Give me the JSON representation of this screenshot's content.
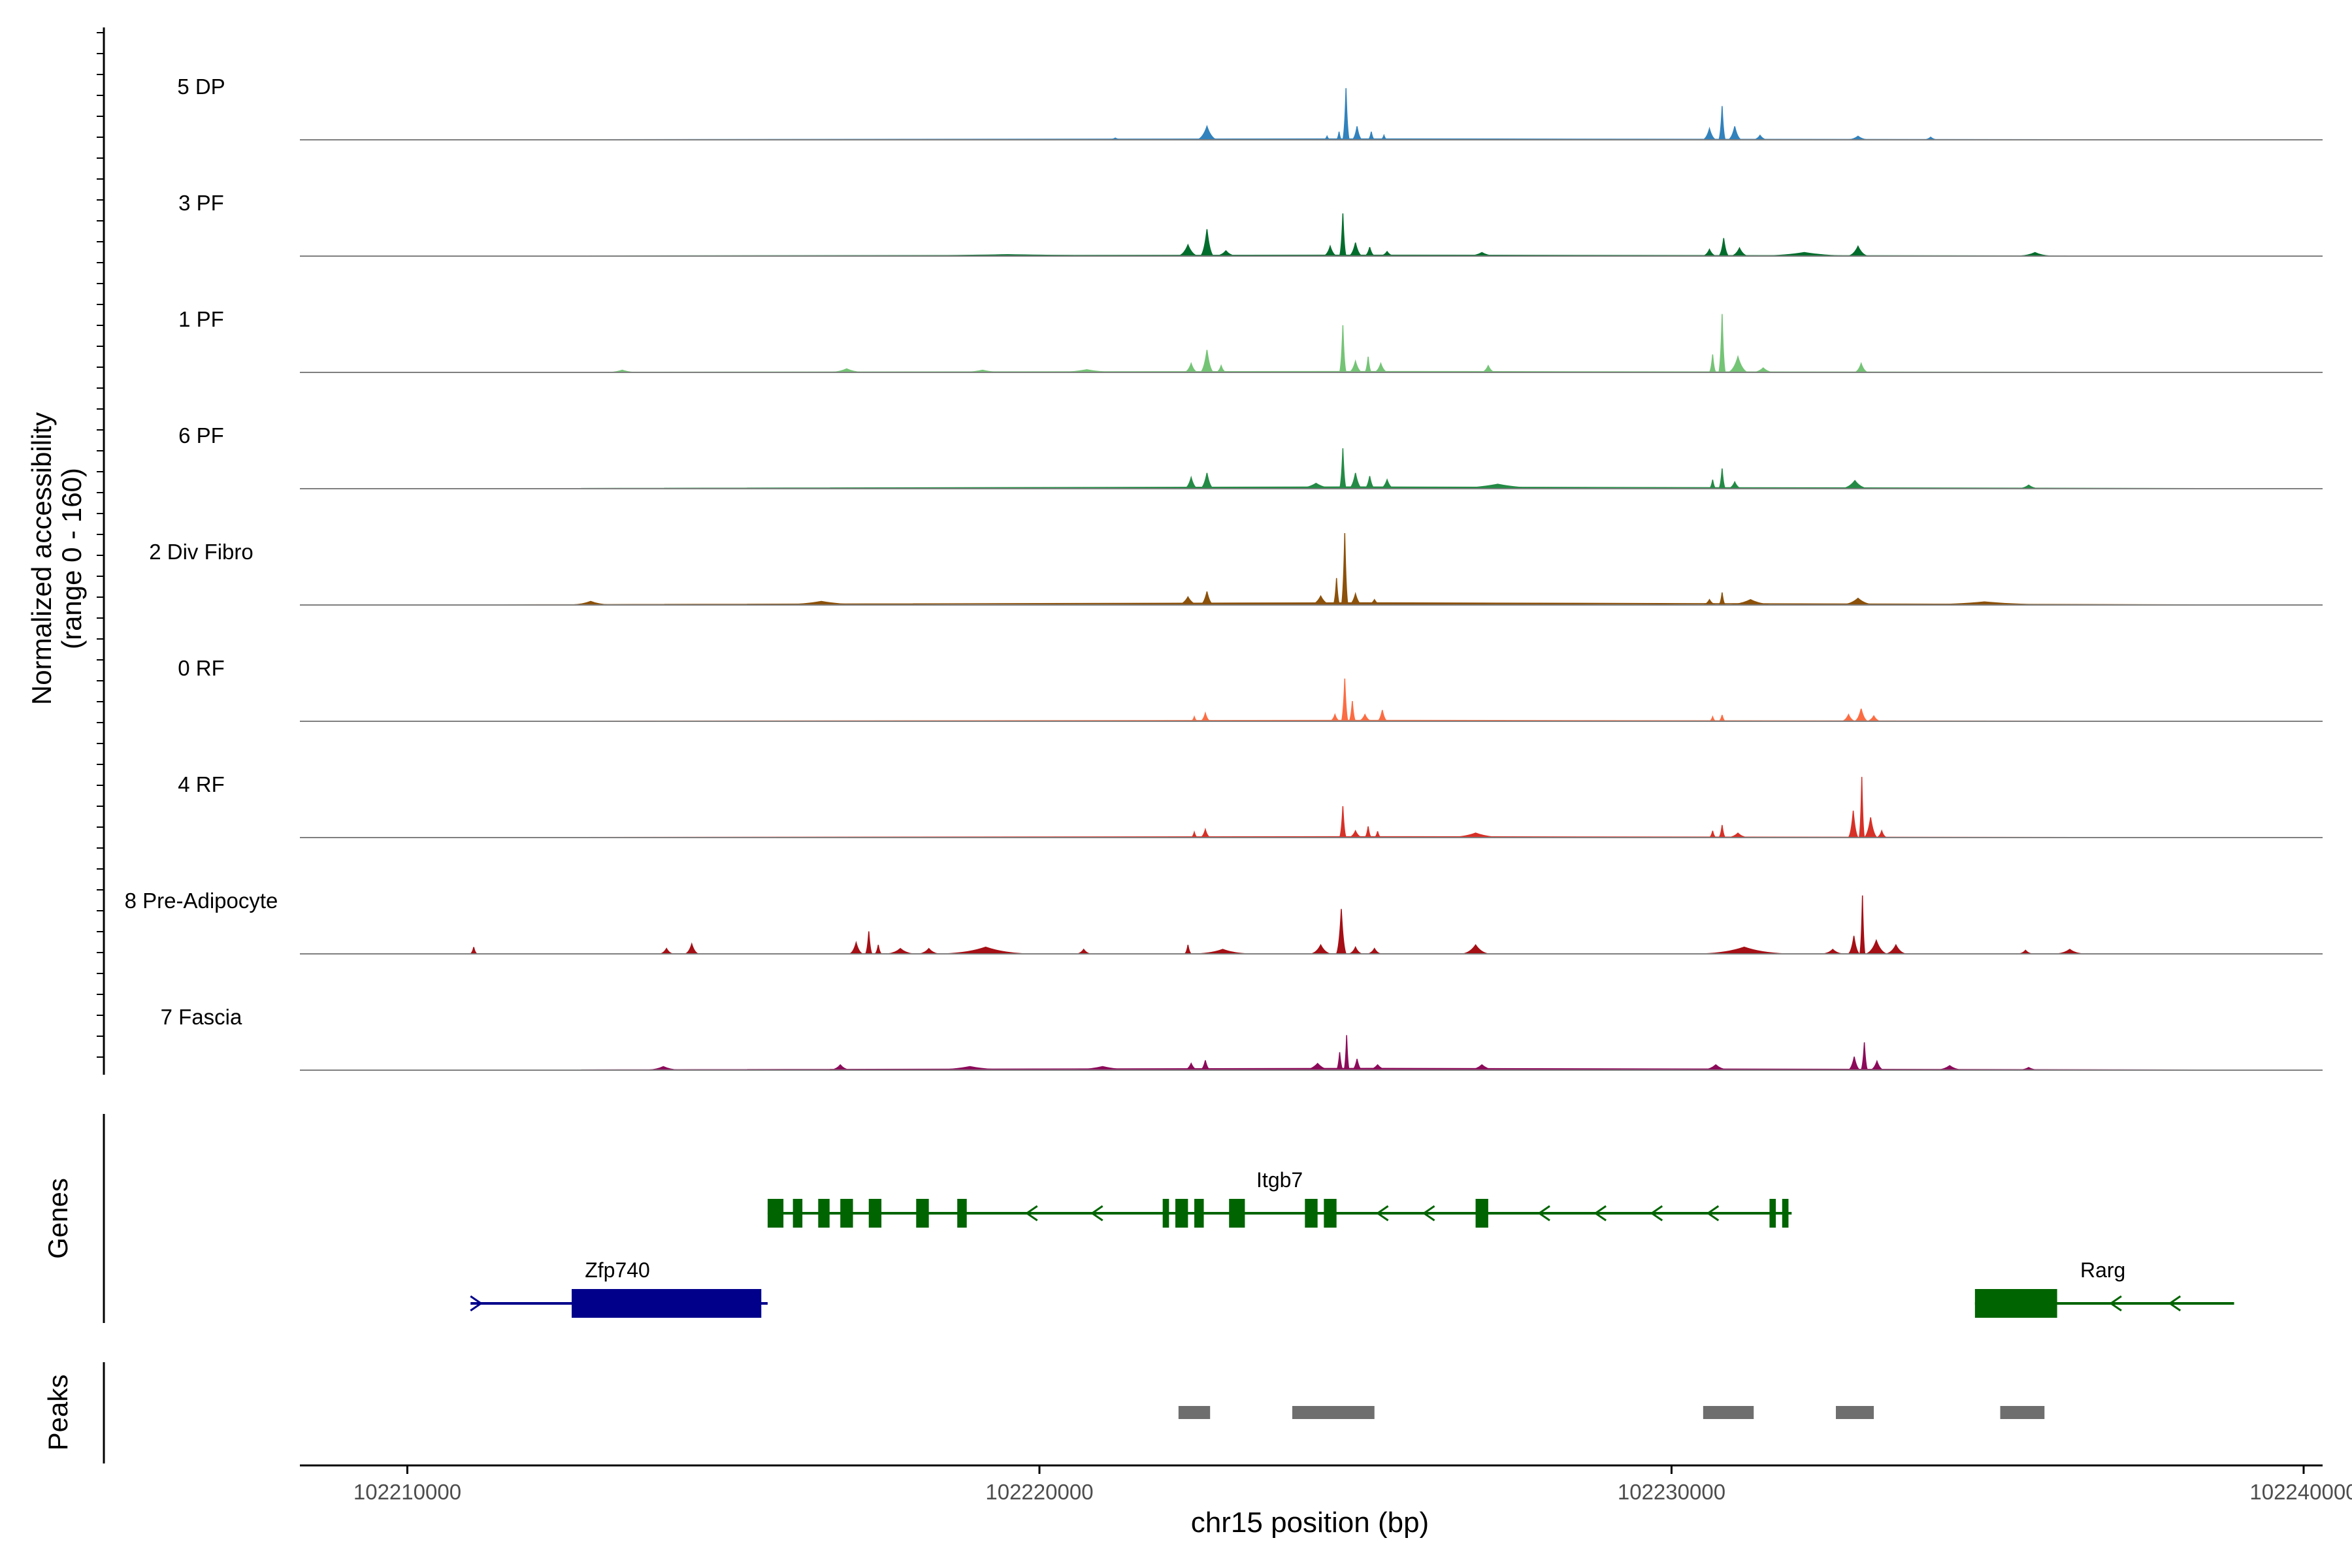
{
  "chart_data": {
    "type": "area",
    "title": "",
    "ylabel_line1": "Normalized accessibility",
    "ylabel_line2": "(range 0 - 160)",
    "xlabel": "chr15 position (bp)",
    "genes_label": "Genes",
    "peaks_label": "Peaks",
    "x_range": [
      102208300,
      102240300
    ],
    "x_ticks": [
      102210000,
      102220000,
      102230000,
      102240000
    ],
    "x_tick_labels": [
      "102210000",
      "102220000",
      "102230000",
      "102240000"
    ],
    "y_range": [
      0,
      160
    ],
    "tracks": [
      {
        "name": "5 DP",
        "color": "#3182bd",
        "peaks": [
          [
            102210500,
            102239500,
            2
          ],
          [
            102221100,
            102221300,
            4
          ],
          [
            102222500,
            102222800,
            30
          ],
          [
            102224500,
            102224600,
            8
          ],
          [
            102224700,
            102224780,
            18
          ],
          [
            102224800,
            102224900,
            115
          ],
          [
            102224950,
            102225100,
            30
          ],
          [
            102225200,
            102225300,
            18
          ],
          [
            102225400,
            102225500,
            10
          ],
          [
            102230500,
            102230700,
            25
          ],
          [
            102230750,
            102230850,
            75
          ],
          [
            102230900,
            102231100,
            30
          ],
          [
            102231300,
            102231500,
            10
          ],
          [
            102232800,
            102233100,
            8
          ],
          [
            102234000,
            102234200,
            6
          ]
        ]
      },
      {
        "name": "3 PF",
        "color": "#006d2c",
        "peaks": [
          [
            102210500,
            102239500,
            2
          ],
          [
            102217000,
            102222000,
            3
          ],
          [
            102222200,
            102222500,
            25
          ],
          [
            102222550,
            102222750,
            60
          ],
          [
            102222800,
            102223100,
            12
          ],
          [
            102224500,
            102224700,
            22
          ],
          [
            102224750,
            102224850,
            95
          ],
          [
            102224900,
            102225100,
            30
          ],
          [
            102225150,
            102225300,
            20
          ],
          [
            102225400,
            102225600,
            10
          ],
          [
            102226800,
            102227200,
            8
          ],
          [
            102230500,
            102230700,
            15
          ],
          [
            102230750,
            102230900,
            40
          ],
          [
            102230950,
            102231200,
            18
          ],
          [
            102231400,
            102232800,
            8
          ],
          [
            102232800,
            102233100,
            22
          ],
          [
            102235500,
            102236000,
            8
          ]
        ]
      },
      {
        "name": "1 PF",
        "color": "#74c476",
        "peaks": [
          [
            102210500,
            102239500,
            2
          ],
          [
            102213200,
            102213600,
            5
          ],
          [
            102216700,
            102217200,
            8
          ],
          [
            102218800,
            102219400,
            5
          ],
          [
            102220300,
            102221200,
            6
          ],
          [
            102222300,
            102222500,
            20
          ],
          [
            102222550,
            102222750,
            50
          ],
          [
            102222800,
            102222950,
            15
          ],
          [
            102224750,
            102224850,
            105
          ],
          [
            102224900,
            102225100,
            25
          ],
          [
            102225150,
            102225250,
            35
          ],
          [
            102225300,
            102225500,
            20
          ],
          [
            102227000,
            102227200,
            15
          ],
          [
            102230600,
            102230700,
            40
          ],
          [
            102230750,
            102230850,
            130
          ],
          [
            102230900,
            102231200,
            35
          ],
          [
            102231300,
            102231600,
            10
          ],
          [
            102232900,
            102233100,
            20
          ]
        ]
      },
      {
        "name": "6 PF",
        "color": "#238b45",
        "peaks": [
          [
            102210500,
            102239500,
            4
          ],
          [
            102222300,
            102222500,
            25
          ],
          [
            102222550,
            102222750,
            35
          ],
          [
            102224100,
            102224650,
            12
          ],
          [
            102224750,
            102224850,
            90
          ],
          [
            102224900,
            102225100,
            35
          ],
          [
            102225150,
            102225300,
            28
          ],
          [
            102225400,
            102225600,
            20
          ],
          [
            102226500,
            102228000,
            10
          ],
          [
            102230600,
            102230700,
            20
          ],
          [
            102230750,
            102230850,
            45
          ],
          [
            102230900,
            102231100,
            15
          ],
          [
            102232700,
            102233100,
            18
          ],
          [
            102235500,
            102235800,
            8
          ]
        ]
      },
      {
        "name": "2 Div Fibro",
        "color": "#8c510a",
        "peaks": [
          [
            102210500,
            102239500,
            5
          ],
          [
            102212600,
            102213200,
            8
          ],
          [
            102215900,
            102217200,
            8
          ],
          [
            102222200,
            102222500,
            18
          ],
          [
            102222550,
            102222750,
            30
          ],
          [
            102224300,
            102224600,
            20
          ],
          [
            102224650,
            102224750,
            60
          ],
          [
            102224780,
            102224880,
            160
          ],
          [
            102224900,
            102225100,
            25
          ],
          [
            102225200,
            102225400,
            12
          ],
          [
            102230500,
            102230700,
            12
          ],
          [
            102230750,
            102230850,
            28
          ],
          [
            102230900,
            102231600,
            12
          ],
          [
            102232700,
            102233200,
            15
          ],
          [
            102233900,
            102236000,
            7
          ]
        ]
      },
      {
        "name": "0 RF",
        "color": "#fc6c42",
        "peaks": [
          [
            102210500,
            102239500,
            2
          ],
          [
            102222400,
            102222500,
            10
          ],
          [
            102222550,
            102222700,
            18
          ],
          [
            102224600,
            102224750,
            15
          ],
          [
            102224780,
            102224880,
            95
          ],
          [
            102224900,
            102225000,
            45
          ],
          [
            102225050,
            102225250,
            15
          ],
          [
            102225350,
            102225500,
            25
          ],
          [
            102230600,
            102230700,
            10
          ],
          [
            102230750,
            102230850,
            14
          ],
          [
            102232700,
            102232900,
            15
          ],
          [
            102232900,
            102233100,
            28
          ],
          [
            102233100,
            102233300,
            12
          ]
        ]
      },
      {
        "name": "4 RF",
        "color": "#d73027",
        "peaks": [
          [
            102210500,
            102239500,
            2
          ],
          [
            102222400,
            102222500,
            12
          ],
          [
            102222550,
            102222700,
            18
          ],
          [
            102224750,
            102224850,
            70
          ],
          [
            102224900,
            102225100,
            15
          ],
          [
            102225150,
            102225250,
            25
          ],
          [
            102225300,
            102225400,
            14
          ],
          [
            102226500,
            102227300,
            10
          ],
          [
            102230600,
            102230700,
            15
          ],
          [
            102230750,
            102230850,
            28
          ],
          [
            102230900,
            102231200,
            10
          ],
          [
            102232800,
            102232950,
            60
          ],
          [
            102232970,
            102233050,
            135
          ],
          [
            102233050,
            102233250,
            45
          ],
          [
            102233250,
            102233400,
            15
          ]
        ]
      },
      {
        "name": "8 Pre-Adipocyte",
        "color": "#a50f15",
        "peaks": [
          [
            102211000,
            102211100,
            15
          ],
          [
            102214000,
            102214200,
            12
          ],
          [
            102214400,
            102214600,
            22
          ],
          [
            102217000,
            102217200,
            25
          ],
          [
            102217250,
            102217350,
            50
          ],
          [
            102217400,
            102217500,
            20
          ],
          [
            102217600,
            102218000,
            12
          ],
          [
            102218100,
            102218400,
            12
          ],
          [
            102218500,
            102219800,
            15
          ],
          [
            102220600,
            102220800,
            10
          ],
          [
            102222300,
            102222400,
            20
          ],
          [
            102222500,
            102223300,
            10
          ],
          [
            102224300,
            102224600,
            20
          ],
          [
            102224700,
            102224850,
            100
          ],
          [
            102224900,
            102225100,
            15
          ],
          [
            102225200,
            102225400,
            12
          ],
          [
            102226700,
            102227100,
            20
          ],
          [
            102230500,
            102231800,
            15
          ],
          [
            102232400,
            102232700,
            10
          ],
          [
            102232800,
            102232970,
            40
          ],
          [
            102232980,
            102233060,
            130
          ],
          [
            102233080,
            102233400,
            30
          ],
          [
            102233400,
            102233700,
            20
          ],
          [
            102235500,
            102235700,
            8
          ],
          [
            102236100,
            102236500,
            10
          ]
        ]
      },
      {
        "name": "7 Fascia",
        "color": "#8c0a5a",
        "peaks": [
          [
            102211000,
            102239500,
            4
          ],
          [
            102213800,
            102214300,
            8
          ],
          [
            102216700,
            102217000,
            12
          ],
          [
            102218300,
            102219500,
            8
          ],
          [
            102220500,
            102221500,
            8
          ],
          [
            102222300,
            102222500,
            15
          ],
          [
            102222550,
            102222700,
            22
          ],
          [
            102224200,
            102224600,
            15
          ],
          [
            102224700,
            102224800,
            40
          ],
          [
            102224820,
            102224900,
            78
          ],
          [
            102224950,
            102225100,
            25
          ],
          [
            102225200,
            102225500,
            12
          ],
          [
            102226800,
            102227200,
            12
          ],
          [
            102230500,
            102230900,
            12
          ],
          [
            102232800,
            102232980,
            30
          ],
          [
            102233000,
            102233100,
            62
          ],
          [
            102233150,
            102233350,
            20
          ],
          [
            102234200,
            102234600,
            10
          ],
          [
            102235500,
            102235800,
            6
          ]
        ]
      }
    ],
    "genes": [
      {
        "name": "Itgb7",
        "color": "#006400",
        "strand": "-",
        "start": 102215700,
        "end": 102231900,
        "exons": [
          [
            102215700,
            102215950
          ],
          [
            102216100,
            102216250
          ],
          [
            102216500,
            102216680
          ],
          [
            102216850,
            102217050
          ],
          [
            102217300,
            102217500
          ],
          [
            102218050,
            102218250
          ],
          [
            102218700,
            102218850
          ],
          [
            102221950,
            102222050
          ],
          [
            102222150,
            102222350
          ],
          [
            102222450,
            102222600
          ],
          [
            102223000,
            102223250
          ],
          [
            102224200,
            102224400
          ],
          [
            102224500,
            102224700
          ],
          [
            102226900,
            102227100
          ],
          [
            102231550,
            102231650
          ],
          [
            102231750,
            102231850
          ]
        ]
      },
      {
        "name": "Zfp740",
        "color": "#00008b",
        "strand": "+",
        "start": 102211000,
        "end": 102215700,
        "exons": [
          [
            102212600,
            102215600
          ]
        ]
      },
      {
        "name": "Rarg",
        "color": "#006400",
        "strand": "-",
        "start": 102234800,
        "end": 102238900,
        "exons": [
          [
            102234800,
            102236100
          ]
        ]
      }
    ],
    "peak_regions": [
      [
        102222200,
        102222700
      ],
      [
        102224000,
        102225300
      ],
      [
        102230500,
        102231300
      ],
      [
        102232600,
        102233200
      ],
      [
        102235200,
        102235900
      ]
    ]
  }
}
